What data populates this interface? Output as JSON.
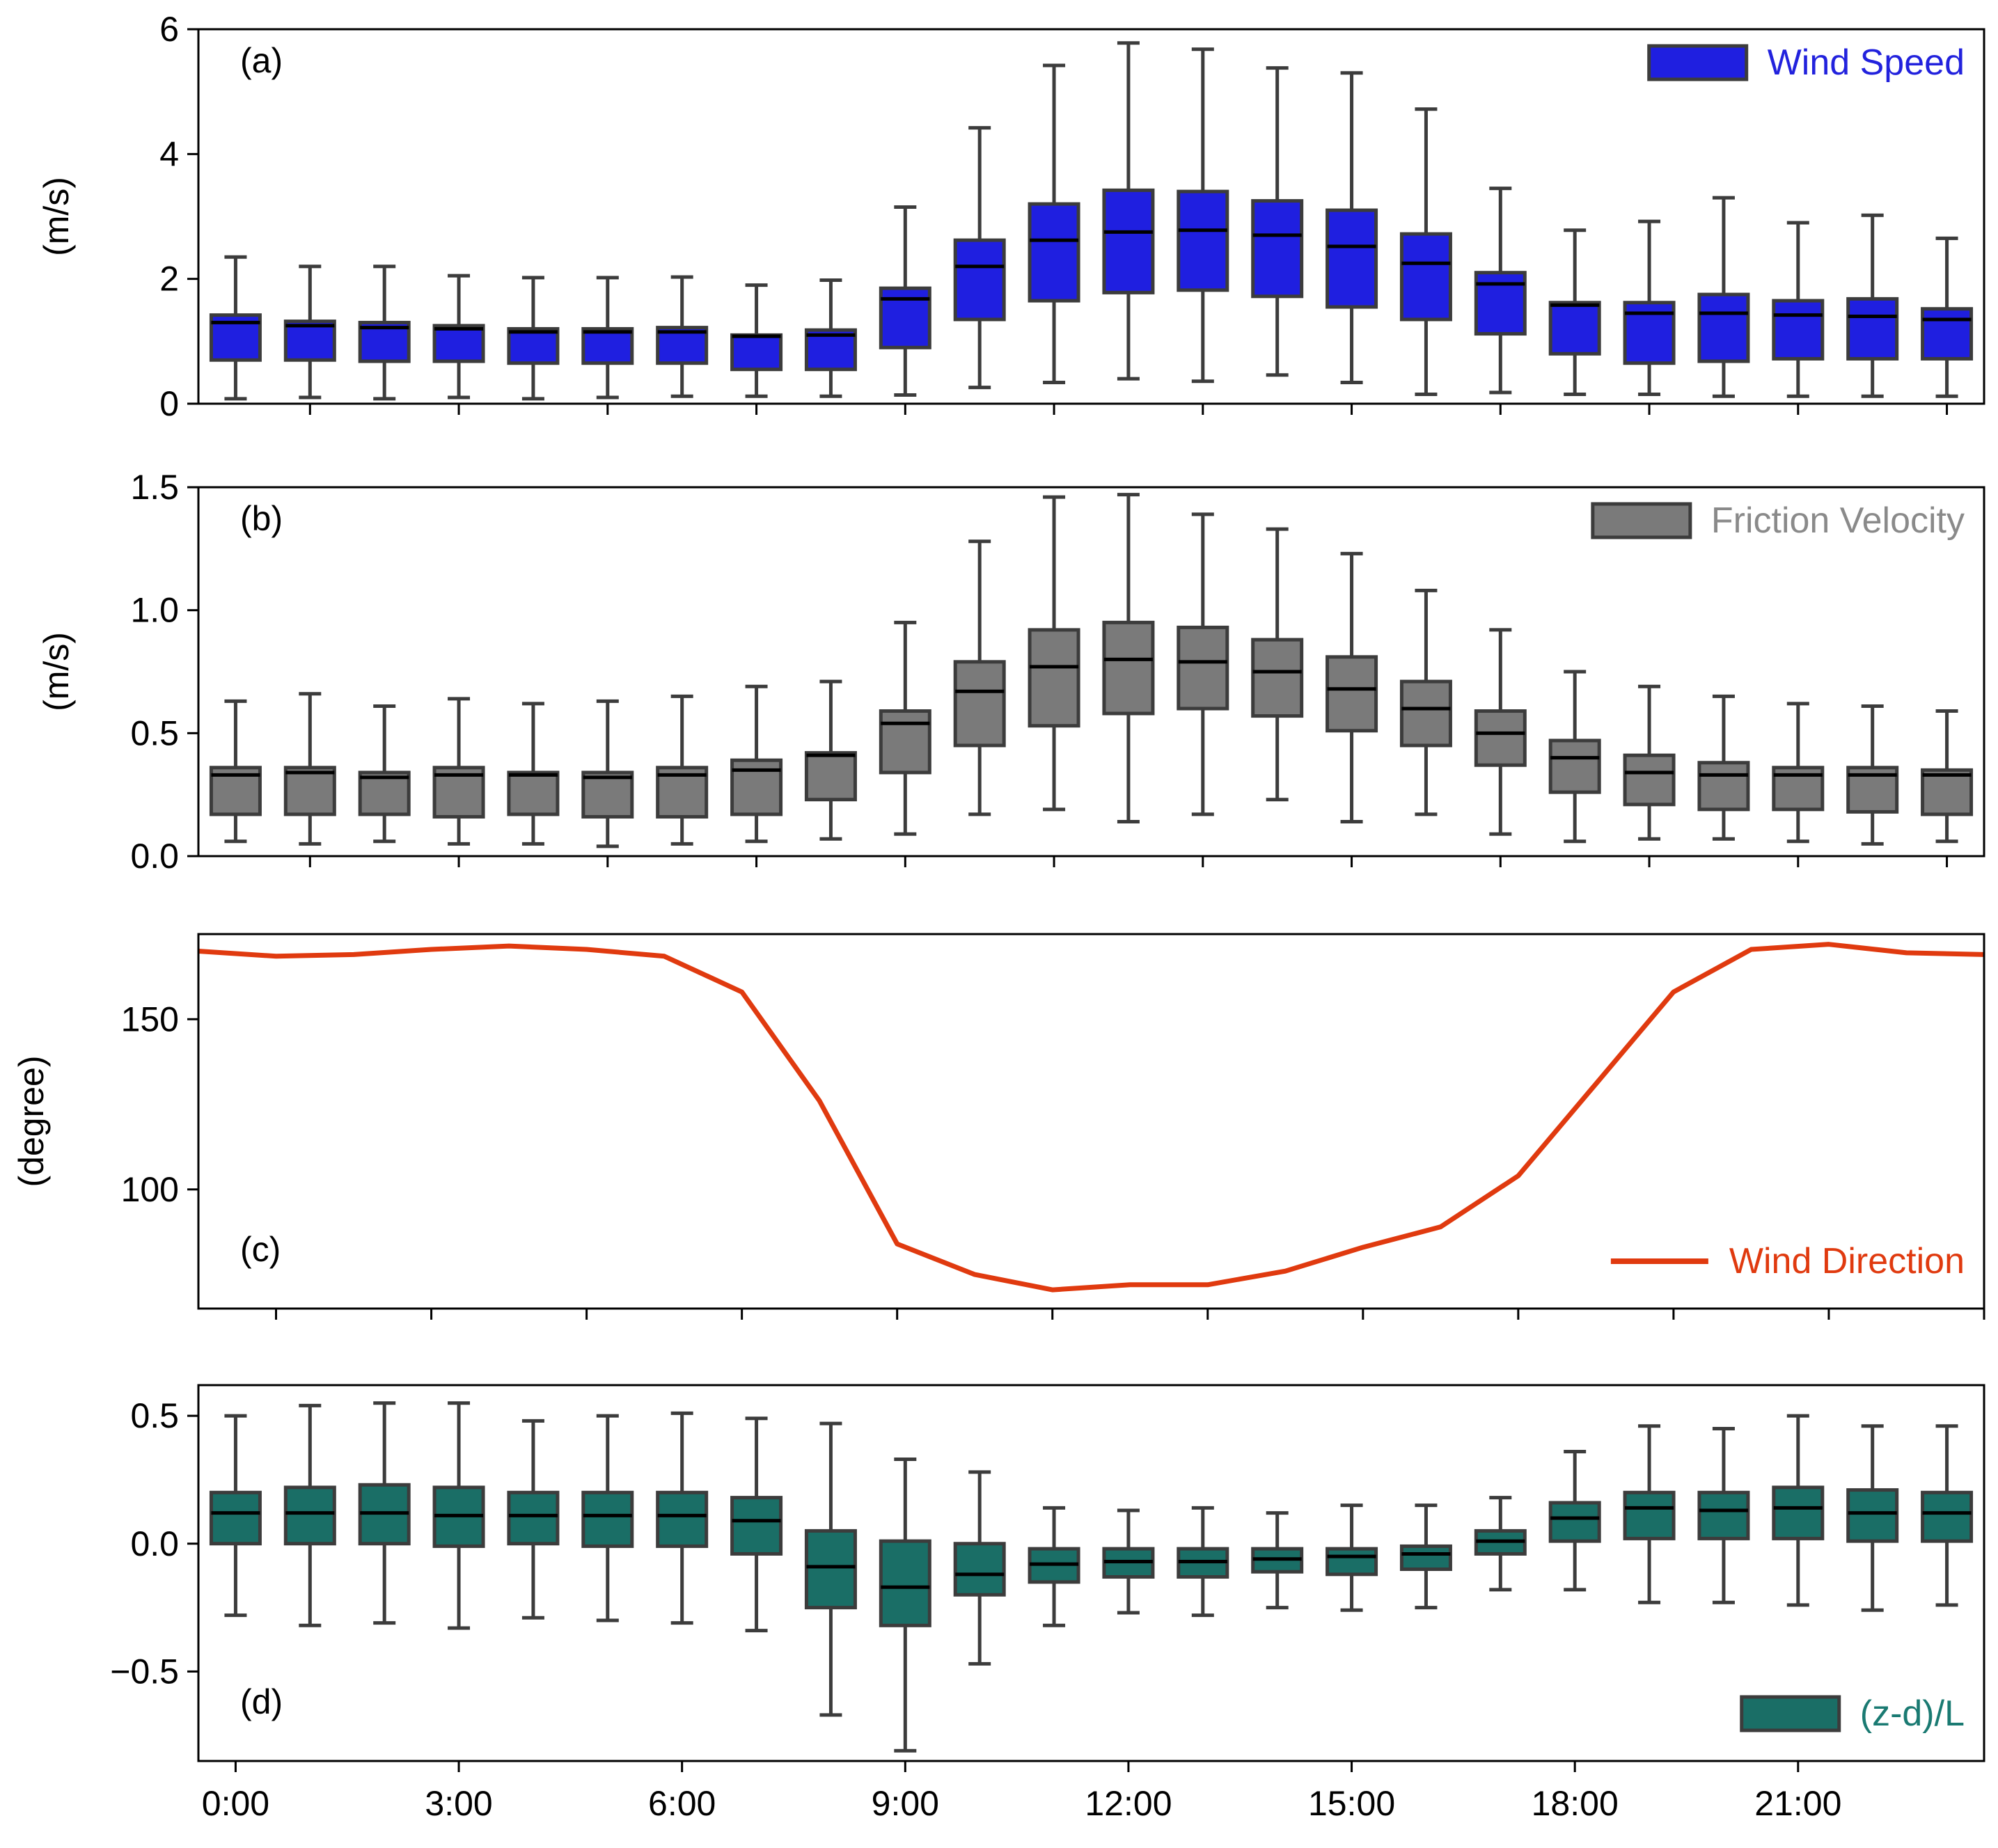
{
  "chart_data": [
    {
      "type": "box",
      "panel_label": "(a)",
      "ylabel": "(m/s)",
      "ylim": [
        0,
        6
      ],
      "yticks": [
        "0",
        "2",
        "4",
        "6"
      ],
      "ytick_values": [
        0,
        2,
        4,
        6
      ],
      "legend": {
        "label": "Wind Speed",
        "placement": "top-right"
      },
      "colors": {
        "fill": "#1f1fe0",
        "label": "#2222dd"
      },
      "x": [
        0,
        1,
        2,
        3,
        4,
        5,
        6,
        7,
        8,
        9,
        10,
        11,
        12,
        13,
        14,
        15,
        16,
        17,
        18,
        19,
        20,
        21,
        22,
        23
      ],
      "whislo": [
        0.08,
        0.1,
        0.08,
        0.1,
        0.08,
        0.1,
        0.12,
        0.12,
        0.12,
        0.14,
        0.26,
        0.34,
        0.4,
        0.36,
        0.46,
        0.34,
        0.15,
        0.18,
        0.15,
        0.15,
        0.12,
        0.12,
        0.12,
        0.12
      ],
      "q1": [
        0.7,
        0.7,
        0.68,
        0.68,
        0.65,
        0.65,
        0.65,
        0.55,
        0.55,
        0.9,
        1.35,
        1.65,
        1.78,
        1.82,
        1.72,
        1.55,
        1.35,
        1.12,
        0.8,
        0.65,
        0.68,
        0.72,
        0.72,
        0.72
      ],
      "median": [
        1.3,
        1.25,
        1.22,
        1.2,
        1.15,
        1.15,
        1.15,
        1.08,
        1.1,
        1.68,
        2.2,
        2.62,
        2.75,
        2.78,
        2.7,
        2.52,
        2.25,
        1.92,
        1.58,
        1.45,
        1.45,
        1.42,
        1.4,
        1.35
      ],
      "q3": [
        1.42,
        1.32,
        1.3,
        1.25,
        1.2,
        1.2,
        1.22,
        1.1,
        1.18,
        1.85,
        2.62,
        3.2,
        3.42,
        3.4,
        3.25,
        3.1,
        2.72,
        2.1,
        1.62,
        1.62,
        1.75,
        1.65,
        1.68,
        1.52
      ],
      "whishi": [
        2.35,
        2.2,
        2.2,
        2.05,
        2.02,
        2.02,
        2.03,
        1.9,
        1.98,
        3.15,
        4.42,
        5.42,
        5.78,
        5.68,
        5.38,
        5.3,
        4.72,
        3.45,
        2.78,
        2.92,
        3.3,
        2.9,
        3.02,
        2.65
      ]
    },
    {
      "type": "box",
      "panel_label": "(b)",
      "ylabel": "(m/s)",
      "ylim": [
        0,
        1.5
      ],
      "yticks": [
        "0.0",
        "0.5",
        "1.0",
        "1.5"
      ],
      "ytick_values": [
        0,
        0.5,
        1.0,
        1.5
      ],
      "legend": {
        "label": "Friction Velocity",
        "placement": "top-right"
      },
      "colors": {
        "fill": "#7a7a7a",
        "label": "#8a8a8a"
      },
      "x": [
        0,
        1,
        2,
        3,
        4,
        5,
        6,
        7,
        8,
        9,
        10,
        11,
        12,
        13,
        14,
        15,
        16,
        17,
        18,
        19,
        20,
        21,
        22,
        23
      ],
      "whislo": [
        0.06,
        0.05,
        0.06,
        0.05,
        0.05,
        0.04,
        0.05,
        0.06,
        0.07,
        0.09,
        0.17,
        0.19,
        0.14,
        0.17,
        0.23,
        0.14,
        0.17,
        0.09,
        0.06,
        0.07,
        0.07,
        0.06,
        0.05,
        0.06
      ],
      "q1": [
        0.17,
        0.17,
        0.17,
        0.16,
        0.17,
        0.16,
        0.16,
        0.17,
        0.23,
        0.34,
        0.45,
        0.53,
        0.58,
        0.6,
        0.57,
        0.51,
        0.45,
        0.37,
        0.26,
        0.21,
        0.19,
        0.19,
        0.18,
        0.17
      ],
      "median": [
        0.33,
        0.34,
        0.32,
        0.33,
        0.33,
        0.32,
        0.33,
        0.35,
        0.41,
        0.54,
        0.67,
        0.77,
        0.8,
        0.79,
        0.75,
        0.68,
        0.6,
        0.5,
        0.4,
        0.34,
        0.33,
        0.33,
        0.33,
        0.33
      ],
      "q3": [
        0.36,
        0.36,
        0.34,
        0.36,
        0.34,
        0.34,
        0.36,
        0.39,
        0.42,
        0.59,
        0.79,
        0.92,
        0.95,
        0.93,
        0.88,
        0.81,
        0.71,
        0.59,
        0.47,
        0.41,
        0.38,
        0.36,
        0.36,
        0.35
      ],
      "whishi": [
        0.63,
        0.66,
        0.61,
        0.64,
        0.62,
        0.63,
        0.65,
        0.69,
        0.71,
        0.95,
        1.28,
        1.46,
        1.47,
        1.39,
        1.33,
        1.23,
        1.08,
        0.92,
        0.75,
        0.69,
        0.65,
        0.62,
        0.61,
        0.59
      ]
    },
    {
      "type": "line",
      "panel_label": "(c)",
      "ylabel": "(degree)",
      "ylim": [
        65,
        175
      ],
      "yticks": [
        "100",
        "150"
      ],
      "ytick_values": [
        100,
        150
      ],
      "legend": {
        "label": "Wind Direction",
        "placement": "bottom-right"
      },
      "colors": {
        "line": "#e03a0f",
        "label": "#e03a0f"
      },
      "x": [
        0,
        1,
        2,
        3,
        4,
        5,
        6,
        7,
        8,
        9,
        10,
        11,
        12,
        13,
        14,
        15,
        16,
        17,
        18,
        19,
        20,
        21,
        22,
        23
      ],
      "y": [
        170,
        168.5,
        169,
        170.5,
        171.5,
        170.5,
        168.5,
        158,
        126,
        84,
        75,
        70.5,
        72,
        72,
        76,
        83,
        89,
        104,
        131,
        158,
        170.5,
        172,
        169.5,
        169
      ]
    },
    {
      "type": "box",
      "panel_label": "(d)",
      "ylabel": "",
      "ylim": [
        -0.85,
        0.62
      ],
      "yticks": [
        "−0.5",
        "0.0",
        "0.5"
      ],
      "ytick_values": [
        -0.5,
        0.0,
        0.5
      ],
      "xticks": [
        "0:00",
        "3:00",
        "6:00",
        "9:00",
        "12:00",
        "15:00",
        "18:00",
        "21:00"
      ],
      "xtick_values": [
        0,
        3,
        6,
        9,
        12,
        15,
        18,
        21
      ],
      "legend": {
        "label": "(z-d)/L",
        "placement": "bottom-right"
      },
      "colors": {
        "fill": "#1a6e66",
        "label": "#1a7a72"
      },
      "x": [
        0,
        1,
        2,
        3,
        4,
        5,
        6,
        7,
        8,
        9,
        10,
        11,
        12,
        13,
        14,
        15,
        16,
        17,
        18,
        19,
        20,
        21,
        22,
        23
      ],
      "whislo": [
        -0.28,
        -0.32,
        -0.31,
        -0.33,
        -0.29,
        -0.3,
        -0.31,
        -0.34,
        -0.67,
        -0.81,
        -0.47,
        -0.32,
        -0.27,
        -0.28,
        -0.25,
        -0.26,
        -0.25,
        -0.18,
        -0.18,
        -0.23,
        -0.23,
        -0.24,
        -0.26,
        -0.24
      ],
      "q1": [
        0.0,
        0.0,
        0.0,
        -0.01,
        0.0,
        -0.01,
        -0.01,
        -0.04,
        -0.25,
        -0.32,
        -0.2,
        -0.15,
        -0.13,
        -0.13,
        -0.11,
        -0.12,
        -0.1,
        -0.04,
        0.01,
        0.02,
        0.02,
        0.02,
        0.01,
        0.01
      ],
      "median": [
        0.12,
        0.12,
        0.12,
        0.11,
        0.11,
        0.11,
        0.11,
        0.09,
        -0.09,
        -0.17,
        -0.12,
        -0.08,
        -0.07,
        -0.07,
        -0.06,
        -0.05,
        -0.04,
        0.01,
        0.1,
        0.14,
        0.13,
        0.14,
        0.12,
        0.12
      ],
      "q3": [
        0.2,
        0.22,
        0.23,
        0.22,
        0.2,
        0.2,
        0.2,
        0.18,
        0.05,
        0.01,
        0.0,
        -0.02,
        -0.02,
        -0.02,
        -0.02,
        -0.02,
        -0.01,
        0.05,
        0.16,
        0.2,
        0.2,
        0.22,
        0.21,
        0.2
      ],
      "whishi": [
        0.5,
        0.54,
        0.55,
        0.55,
        0.48,
        0.5,
        0.51,
        0.49,
        0.47,
        0.33,
        0.28,
        0.14,
        0.13,
        0.14,
        0.12,
        0.15,
        0.15,
        0.18,
        0.36,
        0.46,
        0.45,
        0.5,
        0.46,
        0.46
      ]
    }
  ]
}
